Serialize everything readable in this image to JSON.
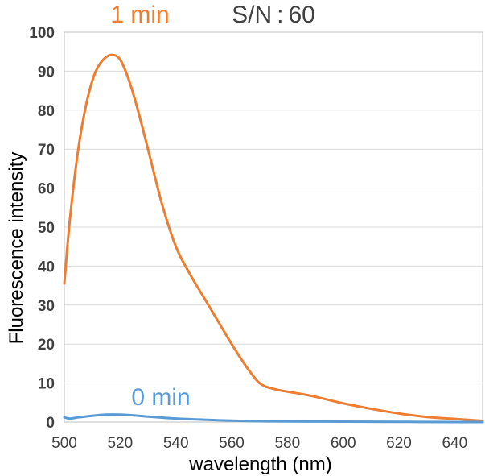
{
  "chart_data": {
    "type": "line",
    "title": "",
    "xlabel": "wavelength (nm)",
    "ylabel": "Fluorescence intensity",
    "xlim": [
      500,
      650
    ],
    "ylim": [
      0,
      100
    ],
    "xticks": [
      "500",
      "520",
      "540",
      "560",
      "580",
      "600",
      "620",
      "640"
    ],
    "yticks": [
      "0",
      "10",
      "20",
      "30",
      "40",
      "50",
      "60",
      "70",
      "80",
      "90",
      "100"
    ],
    "grid": true,
    "annotations": {
      "series_1_label": "1 min",
      "signal_to_noise": "S/N : 60",
      "series_0_label": "0 min"
    },
    "series": [
      {
        "name": "1 min",
        "color": "#ED7D31",
        "x": [
          500,
          502,
          505,
          508,
          511,
          514,
          517,
          520,
          523,
          526,
          530,
          535,
          540,
          545,
          550,
          555,
          560,
          565,
          570,
          575,
          580,
          585,
          590,
          600,
          610,
          620,
          630,
          640,
          650
        ],
        "y": [
          35.5,
          52,
          70,
          82,
          89.5,
          93,
          94.2,
          93,
          88,
          81,
          70,
          56,
          45,
          38,
          32,
          26,
          20,
          14.5,
          10,
          8.5,
          7.8,
          7.2,
          6.5,
          4.8,
          3.4,
          2.2,
          1.3,
          0.8,
          0.3
        ]
      },
      {
        "name": "0 min",
        "color": "#5B9BD5",
        "x": [
          500,
          502,
          505,
          510,
          515,
          520,
          525,
          530,
          540,
          550,
          560,
          570,
          580,
          600,
          620,
          640,
          650
        ],
        "y": [
          1.2,
          0.9,
          1.2,
          1.6,
          1.9,
          1.9,
          1.7,
          1.4,
          0.9,
          0.6,
          0.35,
          0.2,
          0.15,
          0.1,
          0.05,
          0.0,
          0.0
        ]
      }
    ]
  }
}
